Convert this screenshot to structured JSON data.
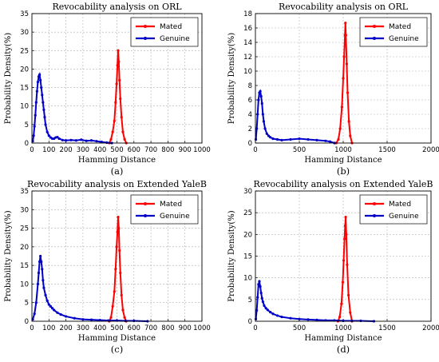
{
  "colors": {
    "mated": "#ff0000",
    "genuine": "#0000c8",
    "grid": "#b0b0b0"
  },
  "chart_data": [
    {
      "type": "line",
      "panel_label": "(a)",
      "title": "Revocability analysis on ORL",
      "xlabel": "Hamming Distance",
      "ylabel": "Probability Density(%)",
      "xlim": [
        0,
        1000
      ],
      "ylim": [
        0,
        35
      ],
      "xticks": [
        "0",
        "100",
        "200",
        "300",
        "400",
        "500",
        "600",
        "700",
        "800",
        "900",
        "1000"
      ],
      "yticks": [
        "0",
        "5",
        "10",
        "15",
        "20",
        "25",
        "30",
        "35"
      ],
      "grid": true,
      "legend_position": "top-right",
      "series": [
        {
          "name": "Mated",
          "color": "#ff0000",
          "x": [
            455,
            465,
            475,
            485,
            492,
            498,
            503,
            507,
            511,
            515,
            520,
            527,
            535,
            545,
            555
          ],
          "y": [
            0,
            1,
            3,
            6,
            11,
            16,
            21,
            25,
            22,
            17,
            12,
            7,
            3,
            1,
            0
          ]
        },
        {
          "name": "Genuine",
          "color": "#0000c8",
          "x": [
            5,
            10,
            15,
            20,
            25,
            30,
            35,
            40,
            45,
            50,
            55,
            60,
            65,
            70,
            75,
            80,
            90,
            100,
            110,
            120,
            130,
            140,
            150,
            160,
            180,
            200,
            230,
            260,
            290,
            320,
            350,
            380,
            410,
            440,
            470
          ],
          "y": [
            0.5,
            2,
            4.5,
            7.5,
            11,
            14,
            16.5,
            18,
            18.5,
            17,
            15,
            13,
            11,
            9,
            7,
            5,
            3,
            2,
            1.5,
            1.2,
            1.2,
            1.5,
            1.6,
            1.2,
            0.8,
            0.7,
            0.8,
            0.7,
            0.9,
            0.6,
            0.7,
            0.5,
            0.3,
            0.1,
            0
          ]
        }
      ]
    },
    {
      "type": "line",
      "panel_label": "(b)",
      "title": "Revocability analysis on ORL",
      "xlabel": "Hamming Distance",
      "ylabel": "Probability Density(%)",
      "xlim": [
        0,
        2000
      ],
      "ylim": [
        0,
        18
      ],
      "xticks": [
        "0",
        "500",
        "1000",
        "1500",
        "2000"
      ],
      "yticks": [
        "0",
        "2",
        "4",
        "6",
        "8",
        "10",
        "12",
        "14",
        "16",
        "18"
      ],
      "grid": true,
      "legend_position": "top-right",
      "series": [
        {
          "name": "Mated",
          "color": "#ff0000",
          "x": [
            920,
            945,
            965,
            985,
            1000,
            1010,
            1020,
            1025,
            1030,
            1040,
            1050,
            1065,
            1080,
            1100
          ],
          "y": [
            0,
            0.5,
            2,
            5,
            9,
            12,
            15,
            16.7,
            15,
            11,
            7,
            3,
            1,
            0
          ]
        },
        {
          "name": "Genuine",
          "color": "#0000c8",
          "x": [
            5,
            15,
            25,
            35,
            45,
            55,
            65,
            75,
            85,
            95,
            110,
            130,
            150,
            170,
            200,
            250,
            300,
            400,
            500,
            600,
            700,
            800,
            850,
            900
          ],
          "y": [
            0.5,
            2,
            4,
            6,
            7,
            7.2,
            6.5,
            5.5,
            4,
            3,
            2,
            1.3,
            1,
            0.8,
            0.6,
            0.5,
            0.4,
            0.5,
            0.6,
            0.5,
            0.4,
            0.3,
            0.2,
            0
          ]
        }
      ]
    },
    {
      "type": "line",
      "panel_label": "(c)",
      "title": "Revocability analysis on Extended YaleB",
      "xlabel": "Hamming Distance",
      "ylabel": "Probability Density(%)",
      "xlim": [
        0,
        1000
      ],
      "ylim": [
        0,
        35
      ],
      "xticks": [
        "0",
        "100",
        "200",
        "300",
        "400",
        "500",
        "600",
        "700",
        "800",
        "900",
        "1000"
      ],
      "yticks": [
        "0",
        "5",
        "10",
        "15",
        "20",
        "25",
        "30",
        "35"
      ],
      "grid": true,
      "legend_position": "top-right",
      "series": [
        {
          "name": "Mated",
          "color": "#ff0000",
          "x": [
            455,
            465,
            475,
            485,
            492,
            498,
            503,
            507,
            511,
            515,
            520,
            527,
            535,
            545,
            555
          ],
          "y": [
            0,
            1,
            4,
            8,
            14,
            20,
            24,
            28,
            25,
            19,
            13,
            7,
            3,
            1,
            0
          ]
        },
        {
          "name": "Genuine",
          "color": "#0000c8",
          "x": [
            5,
            15,
            25,
            35,
            40,
            45,
            50,
            55,
            60,
            65,
            70,
            80,
            90,
            100,
            110,
            120,
            130,
            150,
            170,
            200,
            250,
            300,
            350,
            400,
            450,
            500,
            550,
            600,
            680
          ],
          "y": [
            0.5,
            2,
            5,
            10,
            13,
            16,
            17.5,
            16,
            14,
            11,
            9,
            7,
            5.5,
            4.5,
            4,
            3.5,
            3,
            2.3,
            1.8,
            1.3,
            0.8,
            0.5,
            0.4,
            0.3,
            0.2,
            0.2,
            0.1,
            0.1,
            0
          ]
        }
      ]
    },
    {
      "type": "line",
      "panel_label": "(d)",
      "title": "Revocability analysis on Extended YaleB",
      "xlabel": "Hamming Distance",
      "ylabel": "Probability Density(%)",
      "xlim": [
        0,
        2000
      ],
      "ylim": [
        0,
        30
      ],
      "xticks": [
        "0",
        "500",
        "1000",
        "1500",
        "2000"
      ],
      "yticks": [
        "0",
        "5",
        "10",
        "15",
        "20",
        "25",
        "30"
      ],
      "grid": true,
      "legend_position": "top-right",
      "series": [
        {
          "name": "Mated",
          "color": "#ff0000",
          "x": [
            940,
            960,
            980,
            995,
            1005,
            1015,
            1022,
            1028,
            1035,
            1045,
            1060,
            1080,
            1100
          ],
          "y": [
            0,
            1,
            4,
            9,
            14,
            19,
            22,
            24,
            20,
            13,
            6,
            2,
            0
          ]
        },
        {
          "name": "Genuine",
          "color": "#0000c8",
          "x": [
            5,
            15,
            25,
            35,
            45,
            55,
            65,
            75,
            85,
            100,
            120,
            140,
            170,
            200,
            250,
            300,
            400,
            500,
            600,
            700,
            800,
            900,
            1000,
            1100,
            1200,
            1350
          ],
          "y": [
            0.5,
            2.5,
            5.5,
            8.5,
            9.2,
            8,
            6.5,
            5.3,
            4.5,
            3.6,
            3,
            2.6,
            2.1,
            1.7,
            1.3,
            1,
            0.7,
            0.5,
            0.4,
            0.3,
            0.2,
            0.2,
            0.1,
            0.1,
            0.1,
            0
          ]
        }
      ]
    }
  ]
}
